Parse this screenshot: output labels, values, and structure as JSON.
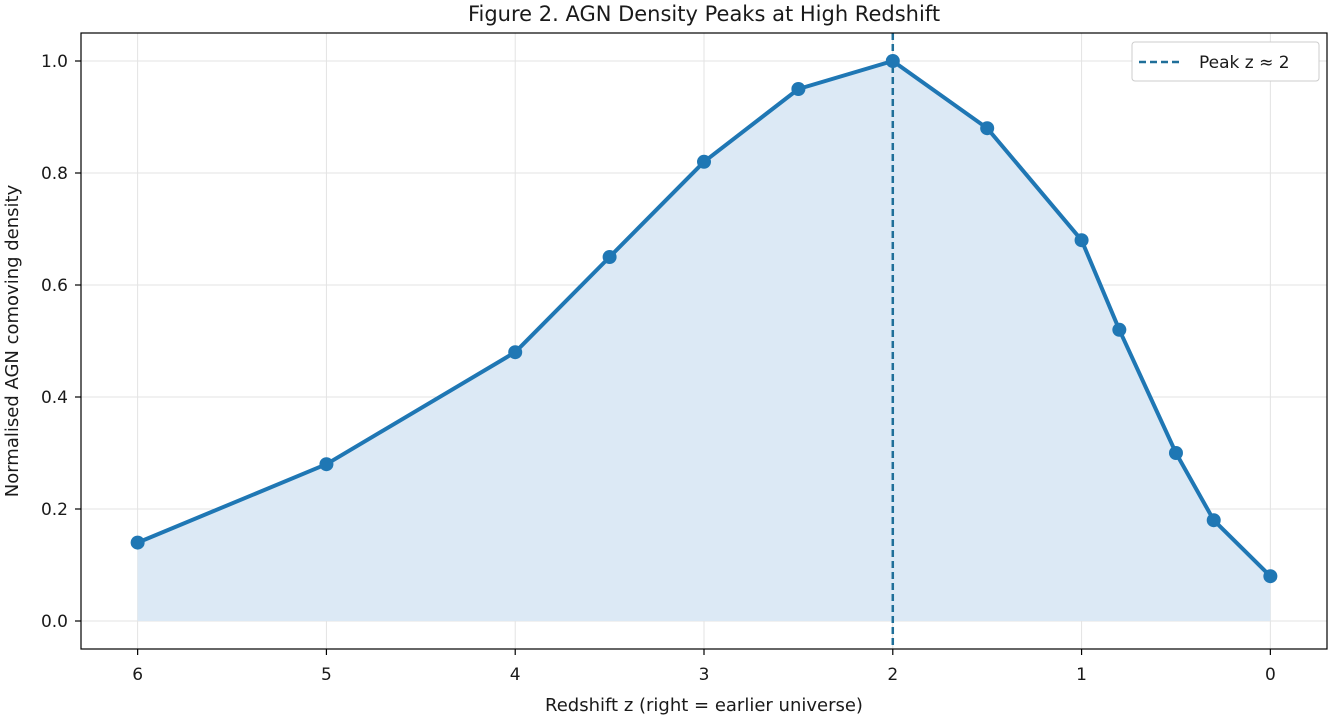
{
  "chart_data": {
    "type": "line",
    "title": "Figure 2. AGN Density Peaks at High Redshift",
    "xlabel": "Redshift z (right = earlier universe)",
    "ylabel": "Normalised AGN comoving density",
    "x_axis_reversed": true,
    "xlim": [
      6.3,
      -0.3
    ],
    "ylim": [
      -0.05,
      1.05
    ],
    "x_ticks": [
      6,
      5,
      4,
      3,
      2,
      1,
      0
    ],
    "y_ticks": [
      0.0,
      0.2,
      0.4,
      0.6,
      0.8,
      1.0
    ],
    "y_tick_labels": [
      "0.0",
      "0.2",
      "0.4",
      "0.6",
      "0.8",
      "1.0"
    ],
    "grid": true,
    "legend_position": "top-right",
    "series": [
      {
        "x": [
          6,
          5,
          4,
          3.5,
          3,
          2.5,
          2,
          1.5,
          1,
          0.8,
          0.5,
          0.3,
          0
        ],
        "y": [
          0.14,
          0.28,
          0.48,
          0.65,
          0.82,
          0.95,
          1.0,
          0.88,
          0.68,
          0.52,
          0.3,
          0.18,
          0.08
        ],
        "color": "#1f77b4",
        "fill": true,
        "fill_color": "#dce9f5",
        "markers": true
      }
    ],
    "annotations": [
      {
        "type": "vline",
        "x": 2,
        "style": "dashed",
        "color": "#1f6f99",
        "label": "Peak z ≈ 2"
      }
    ]
  }
}
